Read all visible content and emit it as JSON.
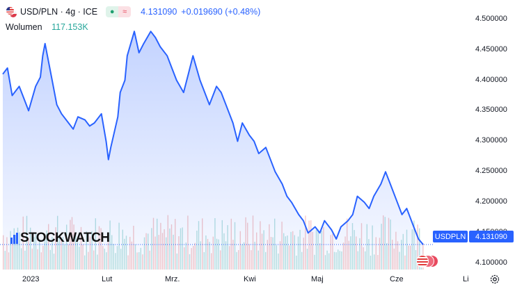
{
  "header": {
    "symbol": "USD/PLN · 4g · ICE",
    "last_price": "4.131090",
    "change": "+0.019690 (+0.48%)",
    "volume_label": "Wolumen",
    "volume_value": "117.153K"
  },
  "watermark": "STOCKWATCH",
  "price_tag": {
    "symbol": "USDPLN",
    "value": "4.131090"
  },
  "colors": {
    "line": "#2962ff",
    "vol_up": "#ef9a9a",
    "vol_down": "#80cbc4",
    "tag": "#2962ff"
  },
  "chart_data": {
    "type": "area",
    "xlabel": "",
    "ylabel": "",
    "x_tick_labels": [
      "2023",
      "Lut",
      "Mrz.",
      "Kwi",
      "Maj",
      "Cze",
      "Li"
    ],
    "y_tick_labels": [
      "4.500000",
      "4.450000",
      "4.400000",
      "4.350000",
      "4.300000",
      "4.250000",
      "4.200000",
      "4.150000",
      "4.100000"
    ],
    "ylim": [
      4.09,
      4.52
    ],
    "grid": false,
    "series": [
      {
        "name": "USDPLN",
        "points": [
          [
            "2023-01-02",
            4.41
          ],
          [
            "2023-01-04",
            4.42
          ],
          [
            "2023-01-06",
            4.375
          ],
          [
            "2023-01-09",
            4.39
          ],
          [
            "2023-01-11",
            4.37
          ],
          [
            "2023-01-13",
            4.35
          ],
          [
            "2023-01-16",
            4.39
          ],
          [
            "2023-01-18",
            4.405
          ],
          [
            "2023-01-19",
            4.44
          ],
          [
            "2023-01-20",
            4.46
          ],
          [
            "2023-01-23",
            4.4
          ],
          [
            "2023-01-25",
            4.36
          ],
          [
            "2023-01-27",
            4.345
          ],
          [
            "2023-01-30",
            4.33
          ],
          [
            "2023-02-01",
            4.32
          ],
          [
            "2023-02-03",
            4.34
          ],
          [
            "2023-02-06",
            4.335
          ],
          [
            "2023-02-08",
            4.325
          ],
          [
            "2023-02-10",
            4.33
          ],
          [
            "2023-02-13",
            4.345
          ],
          [
            "2023-02-15",
            4.3
          ],
          [
            "2023-02-16",
            4.27
          ],
          [
            "2023-02-17",
            4.29
          ],
          [
            "2023-02-20",
            4.34
          ],
          [
            "2023-02-21",
            4.38
          ],
          [
            "2023-02-23",
            4.4
          ],
          [
            "2023-02-24",
            4.44
          ],
          [
            "2023-02-27",
            4.48
          ],
          [
            "2023-03-01",
            4.445
          ],
          [
            "2023-03-03",
            4.46
          ],
          [
            "2023-03-06",
            4.48
          ],
          [
            "2023-03-08",
            4.47
          ],
          [
            "2023-03-10",
            4.455
          ],
          [
            "2023-03-13",
            4.44
          ],
          [
            "2023-03-15",
            4.42
          ],
          [
            "2023-03-17",
            4.4
          ],
          [
            "2023-03-20",
            4.38
          ],
          [
            "2023-03-22",
            4.41
          ],
          [
            "2023-03-24",
            4.44
          ],
          [
            "2023-03-27",
            4.4
          ],
          [
            "2023-03-29",
            4.38
          ],
          [
            "2023-03-31",
            4.36
          ],
          [
            "2023-04-03",
            4.39
          ],
          [
            "2023-04-05",
            4.38
          ],
          [
            "2023-04-07",
            4.36
          ],
          [
            "2023-04-10",
            4.33
          ],
          [
            "2023-04-12",
            4.3
          ],
          [
            "2023-04-14",
            4.33
          ],
          [
            "2023-04-17",
            4.31
          ],
          [
            "2023-04-19",
            4.3
          ],
          [
            "2023-04-21",
            4.28
          ],
          [
            "2023-04-24",
            4.29
          ],
          [
            "2023-04-26",
            4.27
          ],
          [
            "2023-04-28",
            4.25
          ],
          [
            "2023-05-01",
            4.23
          ],
          [
            "2023-05-03",
            4.21
          ],
          [
            "2023-05-05",
            4.2
          ],
          [
            "2023-05-08",
            4.18
          ],
          [
            "2023-05-10",
            4.17
          ],
          [
            "2023-05-12",
            4.15
          ],
          [
            "2023-05-15",
            4.16
          ],
          [
            "2023-05-17",
            4.15
          ],
          [
            "2023-05-19",
            4.17
          ],
          [
            "2023-05-22",
            4.155
          ],
          [
            "2023-05-24",
            4.14
          ],
          [
            "2023-05-26",
            4.16
          ],
          [
            "2023-05-29",
            4.17
          ],
          [
            "2023-05-31",
            4.18
          ],
          [
            "2023-06-02",
            4.21
          ],
          [
            "2023-06-05",
            4.2
          ],
          [
            "2023-06-07",
            4.19
          ],
          [
            "2023-06-09",
            4.21
          ],
          [
            "2023-06-12",
            4.23
          ],
          [
            "2023-06-14",
            4.25
          ],
          [
            "2023-06-16",
            4.23
          ],
          [
            "2023-06-19",
            4.2
          ],
          [
            "2023-06-21",
            4.18
          ],
          [
            "2023-06-23",
            4.19
          ],
          [
            "2023-06-26",
            4.16
          ],
          [
            "2023-06-28",
            4.14
          ],
          [
            "2023-06-30",
            4.131
          ]
        ]
      }
    ]
  }
}
